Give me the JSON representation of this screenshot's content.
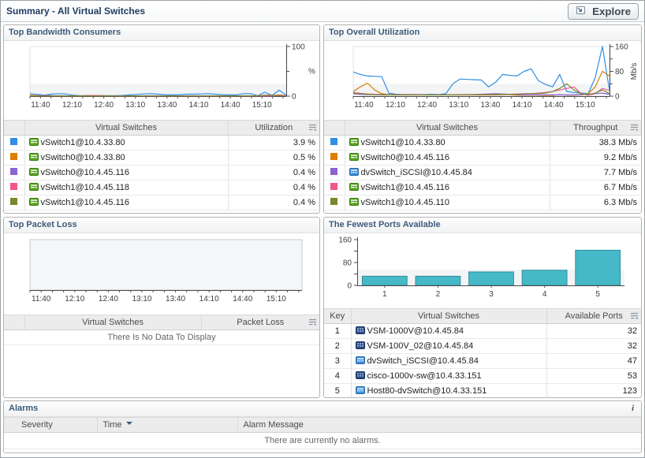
{
  "header": {
    "title": "Summary - All Virtual Switches",
    "explore_label": "Explore"
  },
  "icons": {
    "info_glyph": "i"
  },
  "panels": {
    "bandwidth": {
      "title": "Top Bandwidth Consumers",
      "columns": {
        "switches": "Virtual Switches",
        "value": "Utilization"
      },
      "rows": [
        {
          "color": "#2f8fe5",
          "icon": "vswitch-green-icon",
          "name": "vSwitch1@10.4.33.80",
          "value": "3.9 %"
        },
        {
          "color": "#e07b00",
          "icon": "vswitch-green-icon",
          "name": "vSwitch0@10.4.33.80",
          "value": "0.5 %"
        },
        {
          "color": "#8a63d2",
          "icon": "vswitch-green-icon",
          "name": "vSwitch0@10.4.45.116",
          "value": "0.4 %"
        },
        {
          "color": "#f2568e",
          "icon": "vswitch-green-icon",
          "name": "vSwitch1@10.4.45.118",
          "value": "0.4 %"
        },
        {
          "color": "#78882c",
          "icon": "vswitch-green-icon",
          "name": "vSwitch1@10.4.45.116",
          "value": "0.4 %"
        }
      ]
    },
    "utilization": {
      "title": "Top Overall Utilization",
      "columns": {
        "switches": "Virtual Switches",
        "value": "Throughput"
      },
      "rows": [
        {
          "color": "#2f8fe5",
          "icon": "vswitch-green-icon",
          "name": "vSwitch1@10.4.33.80",
          "value": "38.3 Mb/s"
        },
        {
          "color": "#e07b00",
          "icon": "vswitch-green-icon",
          "name": "vSwitch0@10.4.45.116",
          "value": "9.2 Mb/s"
        },
        {
          "color": "#8a63d2",
          "icon": "dvswitch-blue-icon",
          "name": "dvSwitch_iSCSI@10.4.45.84",
          "value": "7.7 Mb/s"
        },
        {
          "color": "#f2568e",
          "icon": "vswitch-green-icon",
          "name": "vSwitch1@10.4.45.116",
          "value": "6.7 Mb/s"
        },
        {
          "color": "#78882c",
          "icon": "vswitch-green-icon",
          "name": "vSwitch1@10.4.45.110",
          "value": "6.3 Mb/s"
        }
      ]
    },
    "packetloss": {
      "title": "Top Packet Loss",
      "columns": {
        "switches": "Virtual Switches",
        "value": "Packet Loss"
      },
      "empty_message": "There Is No Data To Display"
    },
    "ports": {
      "title": "The Fewest Ports Available",
      "columns": {
        "key": "Key",
        "switches": "Virtual Switches",
        "value": "Available Ports"
      },
      "rows": [
        {
          "key": "1",
          "icon": "vsm-navy-icon",
          "name": "VSM-1000V@10.4.45.84",
          "value": "32"
        },
        {
          "key": "2",
          "icon": "vsm-navy-icon",
          "name": "VSM-100V_02@10.4.45.84",
          "value": "32"
        },
        {
          "key": "3",
          "icon": "dvswitch-blue-icon",
          "name": "dvSwitch_iSCSI@10.4.45.84",
          "value": "47"
        },
        {
          "key": "4",
          "icon": "vsm-navy-icon",
          "name": "cisco-1000v-sw@10.4.33.151",
          "value": "53"
        },
        {
          "key": "5",
          "icon": "dvswitch-blue-icon",
          "name": "Host80-dvSwitch@10.4.33.151",
          "value": "123"
        }
      ]
    },
    "alarms": {
      "title": "Alarms",
      "columns": {
        "severity": "Severity",
        "time": "Time",
        "message": "Alarm Message"
      },
      "empty_message": "There are currently no alarms."
    }
  },
  "chart_data": [
    {
      "id": "bandwidth",
      "type": "line",
      "title": "Top Bandwidth Consumers",
      "xrange": [
        690,
        933
      ],
      "xlabel_start": 700,
      "xticklabels": [
        "11:40",
        "12:10",
        "12:40",
        "13:10",
        "13:40",
        "14:10",
        "14:40",
        "15:10"
      ],
      "ylim": [
        0,
        100
      ],
      "yticks": [
        0,
        100
      ],
      "yminor": [
        50
      ],
      "band": 25,
      "ylabel": "%",
      "series": [
        {
          "name": "vSwitch1@10.4.33.80",
          "color": "#2f8fe5",
          "values": [
            5,
            3.5,
            2,
            4,
            5,
            4.5,
            2,
            1,
            1,
            1,
            1,
            1,
            1,
            1.5,
            2.5,
            3.5,
            4.5,
            5,
            4,
            3,
            2.5,
            3,
            4,
            4,
            4.5,
            5,
            4,
            3,
            2.5,
            2.5,
            5,
            5,
            1,
            8,
            1.5,
            12,
            2
          ]
        },
        {
          "name": "vSwitch0@10.4.33.80",
          "color": "#e07b00",
          "values": [
            2,
            1.2,
            0.6,
            0.5,
            0.5,
            0.5,
            0.5,
            0.5,
            0.5,
            0.5,
            0.5,
            0.5,
            0.5,
            0.5,
            0.5,
            0.5,
            0.5,
            0.5,
            0.5,
            0.5,
            0.5,
            0.5,
            0.5,
            0.5,
            0.5,
            0.5,
            0.5,
            0.5,
            0.5,
            0.5,
            0.5,
            0.5,
            0.5,
            0.5,
            1,
            2.5,
            0.6
          ]
        },
        {
          "name": "vSwitch0@10.4.45.116",
          "color": "#8a63d2",
          "values": [
            0.5,
            1,
            2,
            1,
            0.5,
            0.4,
            0.4,
            0.4,
            0.4,
            0.4,
            0.4,
            0.4,
            0.4,
            0.4,
            0.4,
            0.4,
            0.4,
            0.4,
            0.4,
            0.4,
            0.4,
            0.4,
            0.4,
            0.4,
            0.4,
            0.4,
            0.4,
            0.4,
            0.4,
            0.4,
            0.4,
            0.4,
            0.4,
            0.4,
            0.4,
            1,
            0.4
          ]
        },
        {
          "name": "vSwitch1@10.4.45.118",
          "color": "#f2568e",
          "values": [
            0.4,
            0.4,
            0.4,
            0.4,
            0.4,
            0.4,
            0.4,
            0.4,
            1.2,
            1.5,
            1.2,
            0.4,
            0.4,
            0.4,
            0.4,
            0.4,
            0.4,
            0.4,
            0.4,
            0.4,
            0.4,
            0.4,
            0.4,
            0.4,
            0.4,
            0.4,
            0.4,
            0.4,
            0.4,
            0.4,
            0.4,
            0.4,
            1,
            0.4,
            0.4,
            2,
            1
          ]
        },
        {
          "name": "vSwitch1@10.4.45.116",
          "color": "#78882c",
          "values": [
            0.4,
            0.4,
            0.4,
            0.4,
            0.4,
            0.4,
            0.4,
            0.4,
            0.4,
            0.4,
            0.4,
            0.4,
            0.4,
            0.4,
            0.4,
            0.4,
            0.4,
            0.4,
            0.4,
            0.4,
            0.4,
            0.4,
            0.4,
            0.4,
            0.4,
            0.4,
            0.4,
            0.4,
            0.4,
            0.4,
            0.4,
            0.4,
            0.4,
            2,
            2,
            1,
            0.5
          ]
        }
      ]
    },
    {
      "id": "utilization",
      "type": "line",
      "title": "Top Overall Utilization",
      "xrange": [
        690,
        933
      ],
      "xlabel_start": 700,
      "xticklabels": [
        "11:40",
        "12:10",
        "12:40",
        "13:10",
        "13:40",
        "14:10",
        "14:40",
        "15:10"
      ],
      "ylim": [
        0,
        160
      ],
      "yticks": [
        0,
        80,
        160
      ],
      "yminor": [
        40,
        120
      ],
      "band": 40,
      "ylabel": "Mb/s",
      "series": [
        {
          "name": "vSwitch1@10.4.33.80",
          "color": "#2f8fe5",
          "values": [
            78,
            70,
            65,
            64,
            63,
            10,
            6,
            5,
            5,
            5,
            5,
            6,
            5,
            8,
            40,
            55,
            54,
            53,
            52,
            30,
            45,
            70,
            67,
            65,
            80,
            88,
            50,
            38,
            30,
            70,
            15,
            12,
            10,
            8,
            60,
            160,
            18
          ]
        },
        {
          "name": "vSwitch0@10.4.45.116",
          "color": "#e07b00",
          "values": [
            15,
            30,
            42,
            20,
            8,
            5,
            4,
            4,
            4,
            4,
            4,
            4,
            4,
            4,
            4,
            4,
            4,
            4,
            4,
            4,
            4,
            5,
            5,
            3,
            3,
            3,
            3,
            2,
            2,
            5,
            3,
            3,
            4,
            8,
            30,
            80,
            65
          ]
        },
        {
          "name": "dvSwitch_iSCSI@10.4.45.84",
          "color": "#8a63d2",
          "values": [
            8,
            6,
            5,
            5,
            4,
            4,
            4,
            4,
            4,
            4,
            4,
            4,
            4,
            4,
            4,
            4,
            4,
            5,
            6,
            7,
            8,
            7,
            6,
            5,
            4,
            4,
            4,
            4,
            4,
            4,
            4,
            4,
            5,
            6,
            8,
            10,
            6
          ]
        },
        {
          "name": "vSwitch1@10.4.45.116",
          "color": "#f2568e",
          "values": [
            12,
            9,
            7,
            6,
            5,
            5,
            5,
            5,
            5,
            5,
            4,
            4,
            4,
            4,
            4,
            4,
            4,
            5,
            5,
            5,
            5,
            6,
            6,
            7,
            8,
            8,
            10,
            12,
            15,
            20,
            25,
            30,
            8,
            3,
            8,
            25,
            18
          ]
        },
        {
          "name": "vSwitch1@10.4.45.110",
          "color": "#78882c",
          "values": [
            10,
            8,
            6,
            5,
            5,
            4,
            4,
            4,
            4,
            4,
            4,
            4,
            4,
            4,
            4,
            5,
            5,
            5,
            5,
            5,
            5,
            5,
            6,
            6,
            8,
            8,
            8,
            10,
            15,
            25,
            40,
            20,
            8,
            5,
            10,
            20,
            8
          ]
        }
      ]
    },
    {
      "id": "packetloss",
      "type": "line",
      "title": "Top Packet Loss",
      "xrange": [
        690,
        933
      ],
      "xlabel_start": 700,
      "xticklabels": [
        "11:40",
        "12:10",
        "12:40",
        "13:10",
        "13:40",
        "14:10",
        "14:40",
        "15:10"
      ],
      "ylim": [
        0,
        1
      ],
      "yticks": [],
      "yminor": [],
      "band": 0,
      "ylabel": "",
      "series": []
    },
    {
      "id": "ports",
      "type": "bar",
      "title": "The Fewest Ports Available",
      "categories": [
        "1",
        "2",
        "3",
        "4",
        "5"
      ],
      "values": [
        32,
        32,
        47,
        53,
        123
      ],
      "ylim": [
        0,
        160
      ],
      "yticks": [
        0,
        80,
        160
      ],
      "yminor": [
        40,
        120
      ],
      "band": 55,
      "bar_color": "#46b9c8",
      "bar_border": "#2e8e9e"
    }
  ]
}
